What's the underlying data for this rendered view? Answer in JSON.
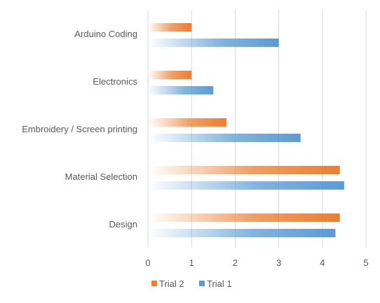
{
  "chart_data": {
    "type": "bar",
    "orientation": "horizontal",
    "title": "",
    "xlabel": "",
    "ylabel": "",
    "categories": [
      "Arduino Coding",
      "Electronics",
      "Embroidery / Screen printing",
      "Material Selection",
      "Design"
    ],
    "series": [
      {
        "name": "Trial 2",
        "values": [
          1,
          1,
          1.8,
          4.4,
          4.4
        ],
        "color": "#ED7D31"
      },
      {
        "name": "Trial 1",
        "values": [
          3,
          1.5,
          3.5,
          4.5,
          4.3
        ],
        "color": "#5B9BD5"
      }
    ],
    "xlim": [
      0,
      5
    ],
    "xticks": [
      "0",
      "1",
      "2",
      "3",
      "4",
      "5"
    ],
    "grid": "vertical",
    "legend": "bottom-center",
    "legend_order": [
      "Trial 2",
      "Trial 1"
    ],
    "bar_fill": "gradient-fade-left"
  }
}
